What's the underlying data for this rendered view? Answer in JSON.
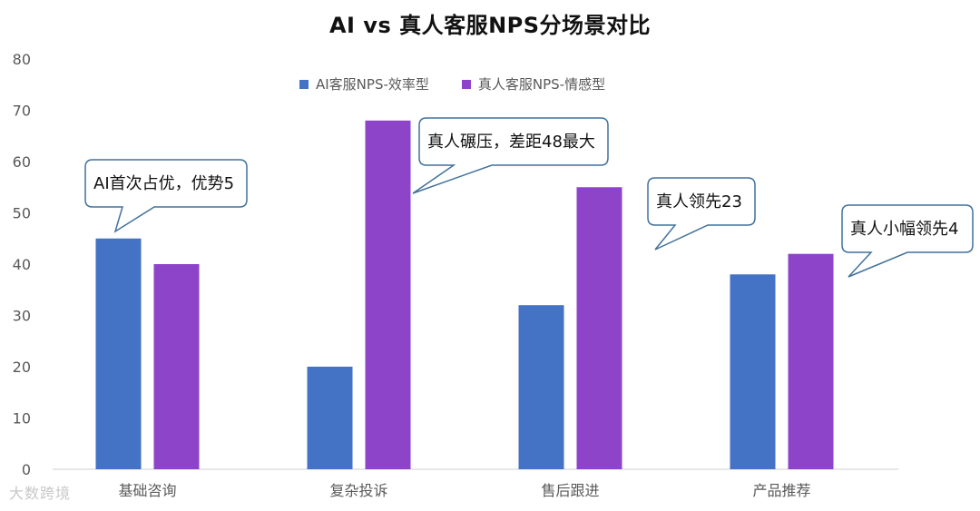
{
  "chart_data": {
    "type": "bar",
    "title": "AI vs 真人客服NPS分场景对比",
    "categories": [
      "基础咨询",
      "复杂投诉",
      "售后跟进",
      "产品推荐"
    ],
    "series": [
      {
        "name": "AI客服NPS-效率型",
        "values": [
          45,
          20,
          32,
          38
        ],
        "color": "#4472C4"
      },
      {
        "name": "真人客服NPS-情感型",
        "values": [
          40,
          68,
          55,
          42
        ],
        "color": "#8E44C9"
      }
    ],
    "ylim": [
      0,
      80
    ],
    "yticks": [
      0,
      10,
      20,
      30,
      40,
      50,
      60,
      70,
      80
    ],
    "grid": false,
    "legend_position": "top",
    "annotations": [
      {
        "category": "基础咨询",
        "series": 0,
        "text": "AI首次占优，优势5"
      },
      {
        "category": "复杂投诉",
        "series": 1,
        "text": "真人碾压，差距48最大"
      },
      {
        "category": "售后跟进",
        "series": 1,
        "text": "真人领先23"
      },
      {
        "category": "产品推荐",
        "series": 1,
        "text": "真人小幅领先4"
      }
    ]
  },
  "watermark": "大数跨境"
}
